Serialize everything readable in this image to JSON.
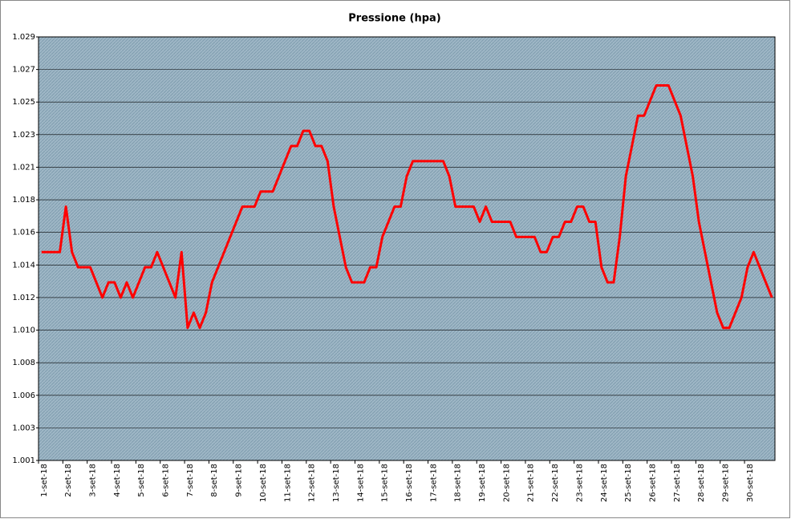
{
  "chart_data": {
    "type": "line",
    "title": "Pressione (hpa)",
    "color": "#ff0000",
    "grid": true,
    "ylim": [
      1001.25,
      1029.2
    ],
    "yticks": [
      {
        "value": 1001.25,
        "label": "1.001"
      },
      {
        "value": 1003.4,
        "label": "1.003"
      },
      {
        "value": 1005.55,
        "label": "1.006"
      },
      {
        "value": 1007.7,
        "label": "1.008"
      },
      {
        "value": 1009.85,
        "label": "1.010"
      },
      {
        "value": 1012.0,
        "label": "1.012"
      },
      {
        "value": 1014.15,
        "label": "1.014"
      },
      {
        "value": 1016.3,
        "label": "1.016"
      },
      {
        "value": 1018.45,
        "label": "1.018"
      },
      {
        "value": 1020.6,
        "label": "1.021"
      },
      {
        "value": 1022.75,
        "label": "1.023"
      },
      {
        "value": 1024.9,
        "label": "1.025"
      },
      {
        "value": 1027.05,
        "label": "1.027"
      },
      {
        "value": 1029.2,
        "label": "1.029"
      }
    ],
    "categories": [
      "1-set-18",
      null,
      null,
      null,
      "2-set-18",
      null,
      null,
      null,
      "3-set-18",
      null,
      null,
      null,
      "4-set-18",
      null,
      null,
      null,
      "5-set-18",
      null,
      null,
      null,
      "6-set-18",
      null,
      null,
      null,
      "7-set-18",
      null,
      null,
      null,
      "8-set-18",
      null,
      null,
      null,
      "9-set-18",
      null,
      null,
      null,
      "10-set-18",
      null,
      null,
      null,
      "11-set-18",
      null,
      null,
      null,
      "12-set-18",
      null,
      null,
      null,
      "13-set-18",
      null,
      null,
      null,
      "14-set-18",
      null,
      null,
      null,
      "15-set-18",
      null,
      null,
      null,
      "16-set-18",
      null,
      null,
      null,
      "17-set-18",
      null,
      null,
      null,
      "18-set-18",
      null,
      null,
      null,
      "19-set-18",
      null,
      null,
      null,
      "20-set-18",
      null,
      null,
      null,
      "21-set-18",
      null,
      null,
      null,
      "22-set-18",
      null,
      null,
      null,
      "23-set-18",
      null,
      null,
      null,
      "24-set-18",
      null,
      null,
      null,
      "25-set-18",
      null,
      null,
      null,
      "26-set-18",
      null,
      null,
      null,
      "27-set-18",
      null,
      null,
      null,
      "28-set-18",
      null,
      null,
      null,
      "29-set-18",
      null,
      null,
      null,
      "30-set-18",
      null,
      null,
      null,
      null
    ],
    "values": [
      1015,
      1015,
      1015,
      1015,
      1018,
      1015,
      1014,
      1014,
      1014,
      1013,
      1012,
      1013,
      1013,
      1012,
      1013,
      1012,
      1013,
      1014,
      1014,
      1015,
      1014,
      1013,
      1012,
      1015,
      1010,
      1011,
      1010,
      1011,
      1013,
      1014,
      1015,
      1016,
      1017,
      1018,
      1018,
      1018,
      1019,
      1019,
      1019,
      1020,
      1021,
      1022,
      1022,
      1023,
      1023,
      1022,
      1022,
      1021,
      1018,
      1016,
      1014,
      1013,
      1013,
      1013,
      1014,
      1014,
      1016,
      1017,
      1018,
      1018,
      1020,
      1021,
      1021,
      1021,
      1021,
      1021,
      1021,
      1020,
      1018,
      1018,
      1018,
      1018,
      1017,
      1018,
      1017,
      1017,
      1017,
      1017,
      1016,
      1016,
      1016,
      1016,
      1015,
      1015,
      1016,
      1016,
      1017,
      1017,
      1018,
      1018,
      1017,
      1017,
      1014,
      1013,
      1013,
      1016,
      1020,
      1022,
      1024,
      1024,
      1025,
      1026,
      1026,
      1026,
      1025,
      1024,
      1022,
      1020,
      1017,
      1015,
      1013,
      1011,
      1010,
      1010,
      1011,
      1012,
      1014,
      1015,
      1014,
      1013,
      1012
    ]
  }
}
